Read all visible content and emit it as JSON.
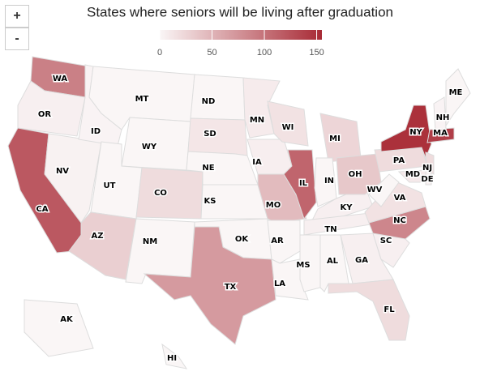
{
  "title": "States where seniors will be living after graduation",
  "zoom": {
    "in": "+",
    "out": "-"
  },
  "chart_data": {
    "type": "choropleth",
    "legend": {
      "range": [
        0,
        155
      ],
      "ticks": [
        0,
        50,
        100,
        150
      ],
      "colors": [
        "#faf6f6",
        "#a82a35"
      ]
    },
    "states": [
      {
        "label": "WA",
        "value": 90
      },
      {
        "label": "OR",
        "value": 5
      },
      {
        "label": "CA",
        "value": 120
      },
      {
        "label": "NV",
        "value": 3
      },
      {
        "label": "ID",
        "value": 2
      },
      {
        "label": "MT",
        "value": 0
      },
      {
        "label": "WY",
        "value": 0
      },
      {
        "label": "UT",
        "value": 0
      },
      {
        "label": "CO",
        "value": 20
      },
      {
        "label": "AZ",
        "value": 30
      },
      {
        "label": "NM",
        "value": 0
      },
      {
        "label": "ND",
        "value": 0
      },
      {
        "label": "SD",
        "value": 12
      },
      {
        "label": "NE",
        "value": 0
      },
      {
        "label": "KS",
        "value": 0
      },
      {
        "label": "OK",
        "value": 0
      },
      {
        "label": "TX",
        "value": 70
      },
      {
        "label": "MN",
        "value": 8
      },
      {
        "label": "IA",
        "value": 6
      },
      {
        "label": "MO",
        "value": 45
      },
      {
        "label": "AR",
        "value": 0
      },
      {
        "label": "LA",
        "value": 0
      },
      {
        "label": "WI",
        "value": 15
      },
      {
        "label": "IL",
        "value": 110
      },
      {
        "label": "MS",
        "value": 0
      },
      {
        "label": "AL",
        "value": 0
      },
      {
        "label": "MI",
        "value": 25
      },
      {
        "label": "IN",
        "value": 0
      },
      {
        "label": "KY",
        "value": 5
      },
      {
        "label": "TN",
        "value": 5
      },
      {
        "label": "OH",
        "value": 35
      },
      {
        "label": "GA",
        "value": 5
      },
      {
        "label": "FL",
        "value": 20
      },
      {
        "label": "SC",
        "value": 5
      },
      {
        "label": "NC",
        "value": 85
      },
      {
        "label": "VA",
        "value": 15
      },
      {
        "label": "WV",
        "value": 0
      },
      {
        "label": "PA",
        "value": 20
      },
      {
        "label": "NY",
        "value": 150
      },
      {
        "label": "MD",
        "value": 10
      },
      {
        "label": "DE",
        "value": 5
      },
      {
        "label": "NJ",
        "value": 20
      },
      {
        "label": "MA",
        "value": 140
      },
      {
        "label": "NH",
        "value": 2
      },
      {
        "label": "ME",
        "value": 0
      },
      {
        "label": "AK",
        "value": 0
      },
      {
        "label": "HI",
        "value": 0
      }
    ]
  }
}
